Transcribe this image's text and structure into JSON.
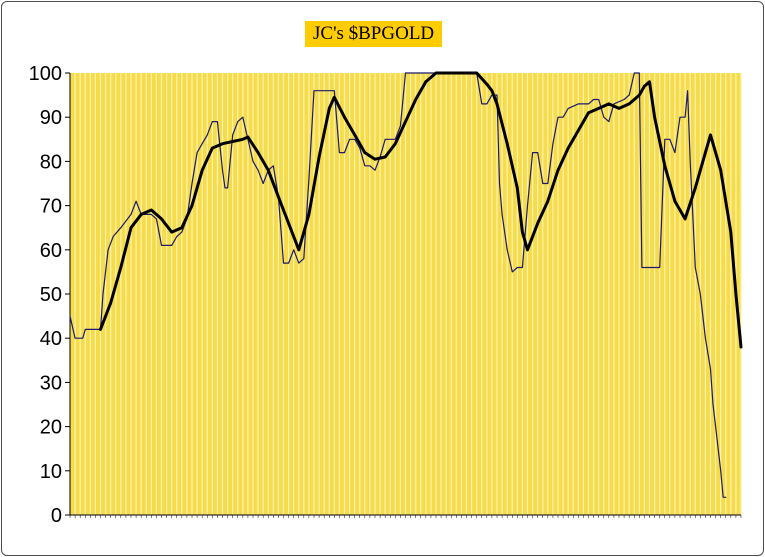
{
  "chart_data": {
    "type": "line",
    "title": "JC's $BPGOLD",
    "ylim": [
      0,
      100
    ],
    "yticks": [
      0,
      10,
      20,
      30,
      40,
      50,
      60,
      70,
      80,
      90,
      100
    ],
    "grid": "vertical",
    "legend": "none",
    "x_tick_labels_note": "dense date labels along x-axis, illegible",
    "series": [
      {
        "style": "thin",
        "color": "#1a1a6e",
        "points": [
          [
            0,
            45
          ],
          [
            1,
            40
          ],
          [
            2.5,
            40
          ],
          [
            3,
            42
          ],
          [
            6,
            42
          ],
          [
            6.5,
            50
          ],
          [
            7.5,
            60
          ],
          [
            8.5,
            63
          ],
          [
            10,
            65
          ],
          [
            12,
            68
          ],
          [
            13,
            71
          ],
          [
            14,
            68
          ],
          [
            16,
            68
          ],
          [
            17,
            67
          ],
          [
            18,
            61
          ],
          [
            20,
            61
          ],
          [
            21,
            63
          ],
          [
            22,
            64
          ],
          [
            23,
            67
          ],
          [
            24,
            75
          ],
          [
            25,
            82
          ],
          [
            26,
            84
          ],
          [
            27,
            86
          ],
          [
            28,
            89
          ],
          [
            29,
            89
          ],
          [
            30,
            78
          ],
          [
            30.5,
            74
          ],
          [
            31,
            74
          ],
          [
            32,
            86
          ],
          [
            33,
            89
          ],
          [
            34,
            90
          ],
          [
            35,
            85
          ],
          [
            36,
            80
          ],
          [
            37,
            78
          ],
          [
            38,
            75
          ],
          [
            39,
            78
          ],
          [
            40,
            79
          ],
          [
            41,
            72
          ],
          [
            42,
            57
          ],
          [
            43,
            57
          ],
          [
            44,
            60
          ],
          [
            45,
            57
          ],
          [
            46,
            58
          ],
          [
            47,
            76
          ],
          [
            48,
            96
          ],
          [
            49,
            96
          ],
          [
            50,
            96
          ],
          [
            51,
            96
          ],
          [
            52,
            96
          ],
          [
            53,
            82
          ],
          [
            54,
            82
          ],
          [
            55,
            85
          ],
          [
            56,
            85
          ],
          [
            57,
            83
          ],
          [
            58,
            79
          ],
          [
            59,
            79
          ],
          [
            60,
            78
          ],
          [
            61,
            81
          ],
          [
            62,
            85
          ],
          [
            63,
            85
          ],
          [
            64,
            85
          ],
          [
            65,
            88
          ],
          [
            66,
            100
          ],
          [
            67,
            100
          ],
          [
            75,
            100
          ],
          [
            77,
            100
          ],
          [
            79,
            100
          ],
          [
            80,
            100
          ],
          [
            81,
            93
          ],
          [
            82,
            93
          ],
          [
            83,
            95
          ],
          [
            84,
            95
          ],
          [
            84.5,
            75
          ],
          [
            85,
            68
          ],
          [
            86,
            60
          ],
          [
            87,
            55
          ],
          [
            88,
            56
          ],
          [
            89,
            56
          ],
          [
            90,
            70
          ],
          [
            91,
            82
          ],
          [
            92,
            82
          ],
          [
            93,
            75
          ],
          [
            94,
            75
          ],
          [
            95,
            84
          ],
          [
            96,
            90
          ],
          [
            97,
            90
          ],
          [
            98,
            92
          ],
          [
            100,
            93
          ],
          [
            102,
            93
          ],
          [
            103,
            94
          ],
          [
            104,
            94
          ],
          [
            105,
            90
          ],
          [
            106,
            89
          ],
          [
            107,
            93
          ],
          [
            109,
            94
          ],
          [
            110,
            95
          ],
          [
            111,
            100
          ],
          [
            112,
            100
          ],
          [
            112.5,
            56
          ],
          [
            116,
            56
          ],
          [
            117,
            85
          ],
          [
            118,
            85
          ],
          [
            119,
            82
          ],
          [
            120,
            90
          ],
          [
            121,
            90
          ],
          [
            121.5,
            96
          ],
          [
            122,
            80
          ],
          [
            123,
            56
          ],
          [
            124,
            50
          ],
          [
            125,
            40
          ],
          [
            126,
            33
          ],
          [
            126.5,
            25
          ],
          [
            127,
            20
          ],
          [
            128,
            10
          ],
          [
            128.5,
            4
          ],
          [
            129,
            4
          ]
        ]
      },
      {
        "style": "thick",
        "color": "#000000",
        "points": [
          [
            6,
            42
          ],
          [
            8,
            48
          ],
          [
            10,
            56
          ],
          [
            12,
            65
          ],
          [
            14,
            68
          ],
          [
            16,
            69
          ],
          [
            18,
            67
          ],
          [
            20,
            64
          ],
          [
            22,
            65
          ],
          [
            24,
            70
          ],
          [
            26,
            78
          ],
          [
            28,
            83
          ],
          [
            30,
            84
          ],
          [
            32,
            84.5
          ],
          [
            34,
            85
          ],
          [
            35,
            85.5
          ],
          [
            37,
            82
          ],
          [
            39,
            78
          ],
          [
            41,
            72
          ],
          [
            43,
            66
          ],
          [
            45,
            60
          ],
          [
            47,
            68
          ],
          [
            49,
            81
          ],
          [
            51,
            92
          ],
          [
            52,
            94.5
          ],
          [
            54,
            90
          ],
          [
            56,
            86
          ],
          [
            58,
            82
          ],
          [
            60,
            80.5
          ],
          [
            62,
            81
          ],
          [
            64,
            84
          ],
          [
            66,
            89
          ],
          [
            68,
            94
          ],
          [
            70,
            98
          ],
          [
            72,
            100
          ],
          [
            76,
            100
          ],
          [
            80,
            100
          ],
          [
            82,
            97.5
          ],
          [
            83,
            96
          ],
          [
            84,
            93
          ],
          [
            86,
            84
          ],
          [
            88,
            74
          ],
          [
            89,
            64
          ],
          [
            90,
            60
          ],
          [
            92,
            66
          ],
          [
            94,
            71
          ],
          [
            96,
            78
          ],
          [
            98,
            83
          ],
          [
            100,
            87
          ],
          [
            102,
            91
          ],
          [
            104,
            92
          ],
          [
            106,
            93
          ],
          [
            108,
            92
          ],
          [
            110,
            93
          ],
          [
            112,
            95
          ],
          [
            113,
            97
          ],
          [
            114,
            98
          ],
          [
            115,
            90
          ],
          [
            117,
            79
          ],
          [
            119,
            71
          ],
          [
            121,
            67
          ],
          [
            123,
            74
          ],
          [
            125,
            82
          ],
          [
            126,
            86
          ],
          [
            128,
            78
          ],
          [
            130,
            64
          ],
          [
            131,
            50
          ],
          [
            132,
            38
          ]
        ]
      }
    ]
  }
}
